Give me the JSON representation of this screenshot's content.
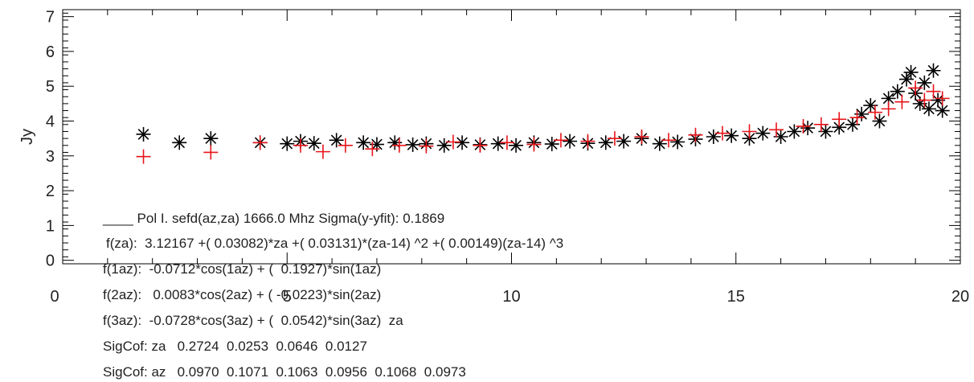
{
  "chart_data": {
    "type": "scatter",
    "title": "",
    "xlabel": "",
    "ylabel": "Jy",
    "xlim": [
      0,
      20
    ],
    "ylim": [
      -0.1,
      7.2
    ],
    "xticks": [
      0,
      5,
      10,
      15,
      20
    ],
    "yticks": [
      0,
      1,
      2,
      3,
      4,
      5,
      6,
      7
    ],
    "grid": false,
    "series": [
      {
        "marker": "asterisk",
        "color": "#000000",
        "points": [
          [
            1.8,
            3.62
          ],
          [
            2.6,
            3.38
          ],
          [
            3.3,
            3.5
          ],
          [
            4.4,
            3.38
          ],
          [
            5.0,
            3.35
          ],
          [
            5.3,
            3.42
          ],
          [
            5.6,
            3.36
          ],
          [
            6.1,
            3.45
          ],
          [
            6.7,
            3.38
          ],
          [
            7.0,
            3.33
          ],
          [
            7.4,
            3.38
          ],
          [
            7.8,
            3.32
          ],
          [
            8.1,
            3.35
          ],
          [
            8.5,
            3.3
          ],
          [
            8.9,
            3.38
          ],
          [
            9.3,
            3.32
          ],
          [
            9.7,
            3.35
          ],
          [
            10.1,
            3.3
          ],
          [
            10.5,
            3.38
          ],
          [
            10.9,
            3.34
          ],
          [
            11.3,
            3.42
          ],
          [
            11.7,
            3.36
          ],
          [
            12.1,
            3.38
          ],
          [
            12.5,
            3.42
          ],
          [
            12.9,
            3.5
          ],
          [
            13.3,
            3.35
          ],
          [
            13.7,
            3.4
          ],
          [
            14.1,
            3.48
          ],
          [
            14.5,
            3.55
          ],
          [
            14.9,
            3.58
          ],
          [
            15.3,
            3.5
          ],
          [
            15.6,
            3.65
          ],
          [
            16.0,
            3.55
          ],
          [
            16.3,
            3.7
          ],
          [
            16.6,
            3.8
          ],
          [
            17.0,
            3.7
          ],
          [
            17.3,
            3.82
          ],
          [
            17.6,
            3.9
          ],
          [
            17.8,
            4.2
          ],
          [
            18.0,
            4.45
          ],
          [
            18.2,
            4.0
          ],
          [
            18.4,
            4.65
          ],
          [
            18.6,
            4.85
          ],
          [
            18.8,
            5.2
          ],
          [
            18.9,
            5.4
          ],
          [
            19.0,
            4.8
          ],
          [
            19.1,
            4.5
          ],
          [
            19.2,
            5.1
          ],
          [
            19.3,
            4.35
          ],
          [
            19.4,
            5.45
          ],
          [
            19.5,
            4.6
          ],
          [
            19.6,
            4.3
          ]
        ]
      },
      {
        "marker": "plus",
        "color": "#e8141b",
        "points": [
          [
            1.8,
            2.98
          ],
          [
            3.3,
            3.1
          ],
          [
            4.4,
            3.38
          ],
          [
            5.3,
            3.3
          ],
          [
            5.8,
            3.12
          ],
          [
            6.3,
            3.3
          ],
          [
            6.9,
            3.2
          ],
          [
            7.5,
            3.3
          ],
          [
            8.1,
            3.28
          ],
          [
            8.7,
            3.4
          ],
          [
            9.3,
            3.3
          ],
          [
            9.9,
            3.38
          ],
          [
            10.5,
            3.33
          ],
          [
            11.1,
            3.45
          ],
          [
            11.7,
            3.42
          ],
          [
            12.3,
            3.5
          ],
          [
            12.9,
            3.55
          ],
          [
            13.5,
            3.45
          ],
          [
            14.1,
            3.6
          ],
          [
            14.7,
            3.65
          ],
          [
            15.3,
            3.7
          ],
          [
            15.9,
            3.75
          ],
          [
            16.5,
            3.85
          ],
          [
            16.9,
            3.9
          ],
          [
            17.3,
            4.05
          ],
          [
            17.7,
            4.1
          ],
          [
            18.1,
            4.25
          ],
          [
            18.4,
            4.35
          ],
          [
            18.7,
            4.55
          ],
          [
            19.0,
            4.95
          ],
          [
            19.2,
            4.6
          ],
          [
            19.4,
            4.85
          ],
          [
            19.6,
            4.65
          ]
        ]
      }
    ]
  },
  "annotations": [
    "____ Pol I. sefd(az,za) 1666.0 Mhz Sigma(y-yfit): 0.1869",
    "f(za):  3.12167 +( 0.03082)*za +( 0.03131)*(za-14) ^2 +( 0.00149)(za-14) ^3",
    "f(1az):  -0.0712*cos(1az) + (  0.1927)*sin(1az)",
    "f(2az):   0.0083*cos(2az) + ( -0.0223)*sin(2az)",
    "f(3az):  -0.0728*cos(3az) + (  0.0542)*sin(3az)  za",
    "SigCof: za   0.2724  0.0253  0.0646  0.0127",
    "SigCof: az   0.0970  0.1071  0.1063  0.0956  0.1068  0.0973"
  ]
}
